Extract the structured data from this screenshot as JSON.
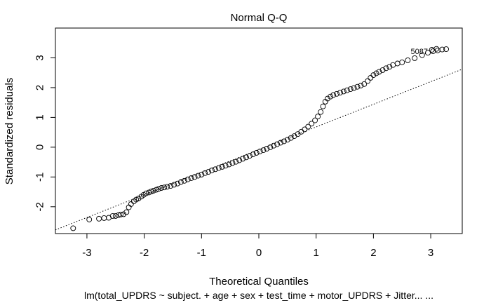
{
  "chart_data": {
    "type": "scatter",
    "title": "Normal Q-Q",
    "xlabel": "Theoretical Quantiles",
    "ylabel": "Standardized residuals",
    "subtitle": "lm(total_UPDRS ~ subject. + age + sex + test_time + motor_UPDRS + Jitter... ...",
    "xlim": [
      -3.55,
      3.55
    ],
    "ylim": [
      -2.9,
      4.0
    ],
    "xticks": [
      -3,
      -2,
      -1,
      0,
      1,
      2,
      3
    ],
    "yticks": [
      -2,
      -1,
      0,
      1,
      2,
      3
    ],
    "xtick_labels": [
      "-3",
      "-2",
      "-1",
      "0",
      "1",
      "2",
      "3"
    ],
    "ytick_labels": [
      "-2",
      "-1",
      "0",
      "1",
      "2",
      "3"
    ],
    "grid": false,
    "reference_line": {
      "style": "dotted",
      "slope": 0.76,
      "intercept": -0.08
    },
    "point_label": "5087",
    "point_label_position": {
      "x": 2.95,
      "y": 3.22
    },
    "points": [
      [
        -3.24,
        -2.72
      ],
      [
        -2.96,
        -2.43
      ],
      [
        -2.79,
        -2.4
      ],
      [
        -2.7,
        -2.38
      ],
      [
        -2.62,
        -2.37
      ],
      [
        -2.55,
        -2.31
      ],
      [
        -2.5,
        -2.31
      ],
      [
        -2.45,
        -2.28
      ],
      [
        -2.41,
        -2.26
      ],
      [
        -2.36,
        -2.25
      ],
      [
        -2.31,
        -2.18
      ],
      [
        -2.27,
        -2.02
      ],
      [
        -2.23,
        -1.91
      ],
      [
        -2.18,
        -1.82
      ],
      [
        -2.14,
        -1.76
      ],
      [
        -2.1,
        -1.72
      ],
      [
        -2.05,
        -1.66
      ],
      [
        -2.01,
        -1.6
      ],
      [
        -1.97,
        -1.55
      ],
      [
        -1.92,
        -1.52
      ],
      [
        -1.88,
        -1.49
      ],
      [
        -1.84,
        -1.46
      ],
      [
        -1.79,
        -1.43
      ],
      [
        -1.75,
        -1.4
      ],
      [
        -1.7,
        -1.37
      ],
      [
        -1.65,
        -1.35
      ],
      [
        -1.6,
        -1.33
      ],
      [
        -1.54,
        -1.3
      ],
      [
        -1.48,
        -1.26
      ],
      [
        -1.42,
        -1.22
      ],
      [
        -1.36,
        -1.17
      ],
      [
        -1.3,
        -1.13
      ],
      [
        -1.24,
        -1.08
      ],
      [
        -1.18,
        -1.04
      ],
      [
        -1.12,
        -1.0
      ],
      [
        -1.06,
        -0.96
      ],
      [
        -1.0,
        -0.92
      ],
      [
        -0.94,
        -0.87
      ],
      [
        -0.88,
        -0.83
      ],
      [
        -0.82,
        -0.78
      ],
      [
        -0.76,
        -0.74
      ],
      [
        -0.7,
        -0.7
      ],
      [
        -0.64,
        -0.66
      ],
      [
        -0.58,
        -0.62
      ],
      [
        -0.52,
        -0.58
      ],
      [
        -0.46,
        -0.53
      ],
      [
        -0.4,
        -0.49
      ],
      [
        -0.34,
        -0.44
      ],
      [
        -0.28,
        -0.39
      ],
      [
        -0.22,
        -0.34
      ],
      [
        -0.16,
        -0.29
      ],
      [
        -0.1,
        -0.24
      ],
      [
        -0.04,
        -0.19
      ],
      [
        0.02,
        -0.14
      ],
      [
        0.08,
        -0.1
      ],
      [
        0.14,
        -0.05
      ],
      [
        0.2,
        0.0
      ],
      [
        0.26,
        0.05
      ],
      [
        0.32,
        0.1
      ],
      [
        0.38,
        0.15
      ],
      [
        0.44,
        0.2
      ],
      [
        0.5,
        0.25
      ],
      [
        0.56,
        0.31
      ],
      [
        0.62,
        0.37
      ],
      [
        0.68,
        0.44
      ],
      [
        0.74,
        0.52
      ],
      [
        0.8,
        0.6
      ],
      [
        0.86,
        0.69
      ],
      [
        0.92,
        0.79
      ],
      [
        0.98,
        0.9
      ],
      [
        1.03,
        1.03
      ],
      [
        1.08,
        1.18
      ],
      [
        1.12,
        1.37
      ],
      [
        1.16,
        1.53
      ],
      [
        1.2,
        1.63
      ],
      [
        1.25,
        1.7
      ],
      [
        1.3,
        1.75
      ],
      [
        1.36,
        1.79
      ],
      [
        1.42,
        1.83
      ],
      [
        1.48,
        1.87
      ],
      [
        1.54,
        1.91
      ],
      [
        1.6,
        1.95
      ],
      [
        1.66,
        1.99
      ],
      [
        1.72,
        2.03
      ],
      [
        1.78,
        2.07
      ],
      [
        1.84,
        2.12
      ],
      [
        1.9,
        2.22
      ],
      [
        1.95,
        2.33
      ],
      [
        2.0,
        2.42
      ],
      [
        2.05,
        2.48
      ],
      [
        2.1,
        2.53
      ],
      [
        2.16,
        2.59
      ],
      [
        2.22,
        2.65
      ],
      [
        2.28,
        2.7
      ],
      [
        2.34,
        2.76
      ],
      [
        2.42,
        2.81
      ],
      [
        2.5,
        2.85
      ],
      [
        2.6,
        2.92
      ],
      [
        2.72,
        2.99
      ],
      [
        2.85,
        3.09
      ],
      [
        2.95,
        3.17
      ],
      [
        3.04,
        3.22
      ],
      [
        3.12,
        3.25
      ],
      [
        3.2,
        3.28
      ],
      [
        3.27,
        3.29
      ],
      [
        3.02,
        3.27
      ],
      [
        3.1,
        3.3
      ]
    ]
  }
}
